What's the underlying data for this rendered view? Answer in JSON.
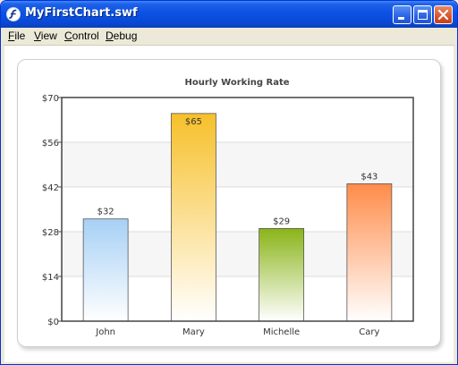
{
  "window": {
    "title": "MyFirstChart.swf",
    "icon": "flash-player-icon",
    "controls": [
      "minimize-icon",
      "maximize-icon",
      "close-icon"
    ]
  },
  "menubar": {
    "items": [
      {
        "label": "File",
        "mnemonic": "F",
        "rest": "ile"
      },
      {
        "label": "View",
        "mnemonic": "V",
        "rest": "iew"
      },
      {
        "label": "Control",
        "mnemonic": "C",
        "rest": "ontrol"
      },
      {
        "label": "Debug",
        "mnemonic": "D",
        "rest": "ebug"
      }
    ]
  },
  "chart_data": {
    "type": "bar",
    "title": "Hourly Working Rate",
    "xlabel": "",
    "ylabel": "",
    "categories": [
      "John",
      "Mary",
      "Michelle",
      "Cary"
    ],
    "values": [
      32,
      65,
      29,
      43
    ],
    "value_labels": [
      "$32",
      "$65",
      "$29",
      "$43"
    ],
    "ylim": [
      0,
      70
    ],
    "yticks": [
      0,
      14,
      28,
      42,
      56,
      70
    ],
    "ytick_labels": [
      "$0",
      "$14",
      "$28",
      "$42",
      "$56",
      "$70"
    ],
    "grid": true,
    "legend": "none",
    "bar_colors": [
      {
        "top": "#a6d0f5",
        "bottom": "#ffffff"
      },
      {
        "top": "#f7c02a",
        "bottom": "#ffffff"
      },
      {
        "top": "#8ab418",
        "bottom": "#ffffff"
      },
      {
        "top": "#ff8c4a",
        "bottom": "#ffffff"
      }
    ]
  }
}
